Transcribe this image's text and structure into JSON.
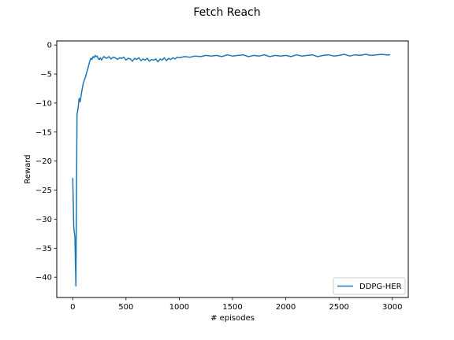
{
  "chart_data": {
    "type": "line",
    "title": "Fetch Reach",
    "xlabel": "# episodes",
    "ylabel": "Reward",
    "xlim": [
      -150,
      3150
    ],
    "ylim": [
      -43.5,
      0.7
    ],
    "xticks": [
      0,
      500,
      1000,
      1500,
      2000,
      2500,
      3000
    ],
    "yticks": [
      0,
      -5,
      -10,
      -15,
      -20,
      -25,
      -30,
      -35,
      -40
    ],
    "xtick_labels": [
      "0",
      "500",
      "1000",
      "1500",
      "2000",
      "2500",
      "3000"
    ],
    "ytick_labels": [
      "0",
      "−5",
      "−10",
      "−15",
      "−20",
      "−25",
      "−30",
      "−35",
      "−40"
    ],
    "grid": false,
    "legend_position": "lower-right",
    "series": [
      {
        "name": "DDPG-HER",
        "color": "#1f77b4",
        "x": [
          0,
          10,
          20,
          30,
          40,
          50,
          60,
          70,
          80,
          90,
          100,
          110,
          120,
          130,
          140,
          150,
          160,
          170,
          180,
          190,
          200,
          210,
          220,
          230,
          240,
          250,
          260,
          270,
          280,
          290,
          300,
          320,
          340,
          360,
          380,
          400,
          420,
          440,
          460,
          480,
          500,
          520,
          540,
          560,
          580,
          600,
          620,
          640,
          660,
          680,
          700,
          720,
          740,
          760,
          780,
          800,
          820,
          840,
          860,
          880,
          900,
          920,
          940,
          960,
          980,
          1000,
          1050,
          1100,
          1150,
          1200,
          1250,
          1300,
          1350,
          1400,
          1450,
          1500,
          1550,
          1600,
          1650,
          1700,
          1750,
          1800,
          1850,
          1900,
          1950,
          2000,
          2050,
          2100,
          2150,
          2200,
          2250,
          2300,
          2350,
          2400,
          2450,
          2500,
          2550,
          2600,
          2650,
          2700,
          2750,
          2800,
          2850,
          2900,
          2950,
          2980
        ],
        "y": [
          -22.9,
          -31.5,
          -33.0,
          -41.5,
          -12.0,
          -11.0,
          -9.2,
          -9.8,
          -8.5,
          -7.5,
          -6.5,
          -6.0,
          -5.5,
          -4.8,
          -4.2,
          -3.5,
          -2.8,
          -2.3,
          -2.5,
          -2.0,
          -2.2,
          -1.8,
          -2.0,
          -1.9,
          -2.4,
          -2.5,
          -2.2,
          -2.6,
          -2.3,
          -2.0,
          -2.1,
          -2.3,
          -2.0,
          -2.4,
          -2.1,
          -2.2,
          -2.5,
          -2.2,
          -2.3,
          -2.1,
          -2.6,
          -2.3,
          -2.4,
          -2.8,
          -2.3,
          -2.5,
          -2.2,
          -2.7,
          -2.4,
          -2.6,
          -2.3,
          -2.8,
          -2.5,
          -2.6,
          -2.4,
          -2.9,
          -2.4,
          -2.6,
          -2.2,
          -2.7,
          -2.3,
          -2.5,
          -2.2,
          -2.4,
          -2.1,
          -2.2,
          -2.0,
          -2.1,
          -1.9,
          -2.0,
          -1.8,
          -1.9,
          -1.8,
          -2.0,
          -1.7,
          -1.9,
          -1.8,
          -1.7,
          -2.0,
          -1.8,
          -1.9,
          -1.7,
          -2.0,
          -1.8,
          -1.9,
          -1.8,
          -2.0,
          -1.7,
          -1.9,
          -1.8,
          -1.7,
          -2.0,
          -1.8,
          -1.7,
          -1.9,
          -1.8,
          -1.6,
          -1.9,
          -1.7,
          -1.8,
          -1.6,
          -1.8,
          -1.7,
          -1.6,
          -1.7,
          -1.7
        ]
      }
    ]
  }
}
